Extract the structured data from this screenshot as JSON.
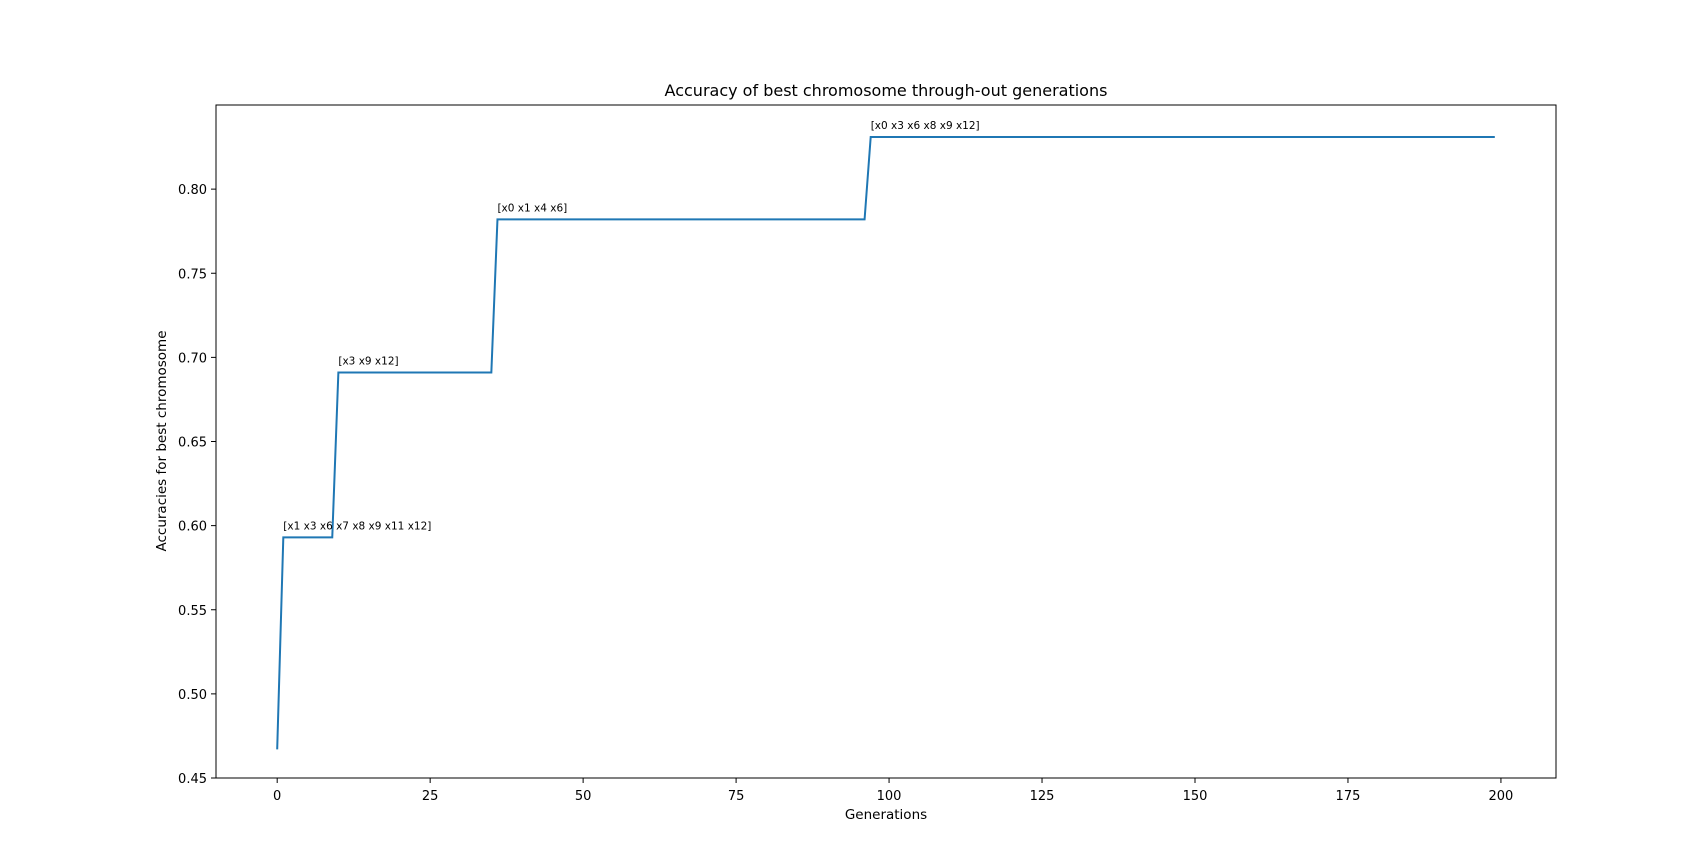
{
  "chart_data": {
    "type": "line",
    "title": "Accuracy of best chromosome through-out generations",
    "xlabel": "Generations",
    "ylabel": "Accuracies for best chromosome",
    "xlim": [
      -10,
      209
    ],
    "ylim": [
      0.45,
      0.85
    ],
    "xticks": [
      0,
      25,
      50,
      75,
      100,
      125,
      150,
      175,
      200
    ],
    "yticks": [
      0.45,
      0.5,
      0.55,
      0.6,
      0.65,
      0.7,
      0.75,
      0.8
    ],
    "grid": false,
    "line_color": "#1f77b4",
    "series": [
      {
        "x": [
          0,
          1,
          9,
          10,
          35,
          36,
          96,
          97,
          199
        ],
        "y": [
          0.467,
          0.593,
          0.593,
          0.691,
          0.691,
          0.782,
          0.782,
          0.831,
          0.831
        ]
      }
    ],
    "annotations": [
      {
        "text": "[x1 x3 x6 x7 x8 x9 x11 x12]",
        "x": 1,
        "y": 0.593
      },
      {
        "text": "[x3 x9 x12]",
        "x": 10,
        "y": 0.691
      },
      {
        "text": "[x0 x1 x4 x6]",
        "x": 36,
        "y": 0.782
      },
      {
        "text": "[x0 x3 x6 x8 x9 x12]",
        "x": 97,
        "y": 0.831
      }
    ]
  }
}
